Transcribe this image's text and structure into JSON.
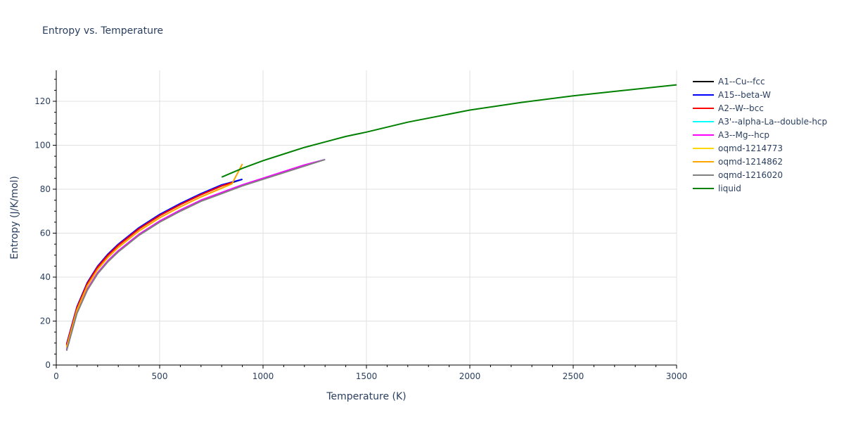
{
  "chart_data": {
    "type": "line",
    "title": "Entropy vs. Temperature",
    "xlabel": "Temperature (K)",
    "ylabel": "Entropy (J/K/mol)",
    "xlim": [
      0,
      3000
    ],
    "ylim": [
      0,
      135
    ],
    "x_ticks": [
      0,
      500,
      1000,
      1500,
      2000,
      2500,
      3000
    ],
    "y_ticks": [
      0,
      20,
      40,
      60,
      80,
      100,
      120
    ],
    "grid": true,
    "legend_position": "right",
    "series": [
      {
        "name": "A1--Cu--fcc",
        "color": "#000000",
        "x": [
          50,
          100,
          150,
          200,
          250,
          300,
          400,
          500,
          600,
          700,
          800,
          900
        ],
        "y": [
          9,
          26,
          37,
          44.5,
          50,
          54.5,
          62,
          68,
          73,
          77.5,
          81.5,
          84.5
        ]
      },
      {
        "name": "A15--beta-W",
        "color": "#0000ff",
        "x": [
          50,
          100,
          150,
          200,
          250,
          300,
          400,
          500,
          600,
          700,
          800,
          900
        ],
        "y": [
          9.5,
          26.5,
          37.5,
          45,
          50.5,
          55,
          62.5,
          68.5,
          73.5,
          78,
          82,
          84.5
        ]
      },
      {
        "name": "A2--W--bcc",
        "color": "#ff0000",
        "x": [
          50,
          100,
          150,
          200,
          250,
          300,
          400,
          500,
          600,
          700,
          800,
          850
        ],
        "y": [
          9,
          26,
          37,
          44.5,
          50,
          54.5,
          62,
          68,
          73,
          77.5,
          81.5,
          83
        ]
      },
      {
        "name": "A3'--alpha-La--double-hcp",
        "color": "#00ffff",
        "x": [
          50,
          100,
          150,
          200,
          250,
          300,
          400,
          500,
          600,
          700,
          800,
          900,
          1000,
          1100,
          1200,
          1300
        ],
        "y": [
          7,
          24,
          34.5,
          42,
          47.5,
          52,
          59.5,
          65.5,
          70.5,
          75,
          78.5,
          82,
          85,
          88,
          91,
          93.5
        ]
      },
      {
        "name": "A3--Mg--hcp",
        "color": "#ff00ff",
        "x": [
          50,
          100,
          150,
          200,
          250,
          300,
          400,
          500,
          600,
          700,
          800,
          900,
          1000,
          1100,
          1200,
          1300
        ],
        "y": [
          7,
          24,
          34.5,
          42,
          47.5,
          52,
          59.5,
          65.5,
          70.5,
          75,
          78.5,
          82,
          85,
          88,
          91,
          93.5
        ]
      },
      {
        "name": "oqmd-1214773",
        "color": "#ffd700",
        "x": [
          50,
          100,
          150,
          200,
          250,
          300,
          400,
          500,
          600,
          700,
          800,
          850
        ],
        "y": [
          8,
          25,
          36,
          43.5,
          49,
          53.5,
          61,
          67,
          72,
          76.5,
          80.5,
          82.5
        ]
      },
      {
        "name": "oqmd-1214862",
        "color": "#ffa500",
        "x": [
          50,
          100,
          150,
          200,
          250,
          300,
          400,
          500,
          600,
          700,
          800,
          850,
          900
        ],
        "y": [
          8,
          25,
          36,
          43.5,
          49,
          53.5,
          61,
          67,
          72,
          76.5,
          80.5,
          82.5,
          91.5
        ]
      },
      {
        "name": "oqmd-1216020",
        "color": "#808080",
        "x": [
          50,
          100,
          150,
          200,
          250,
          300,
          400,
          500,
          600,
          700,
          800,
          900,
          1000,
          1100,
          1200,
          1300
        ],
        "y": [
          6.5,
          23.5,
          34,
          41.5,
          47,
          51.5,
          59,
          65,
          70,
          74.5,
          78,
          81.5,
          84.5,
          87.5,
          90.5,
          93.5
        ]
      },
      {
        "name": "liquid",
        "color": "#008000",
        "x": [
          800,
          900,
          1000,
          1100,
          1200,
          1300,
          1400,
          1500,
          1700,
          2000,
          2250,
          2500,
          2750,
          3000
        ],
        "y": [
          85.5,
          89.5,
          93,
          96,
          99,
          101.5,
          104,
          106,
          110.5,
          116,
          119.5,
          122.5,
          125,
          127.5
        ]
      }
    ]
  }
}
